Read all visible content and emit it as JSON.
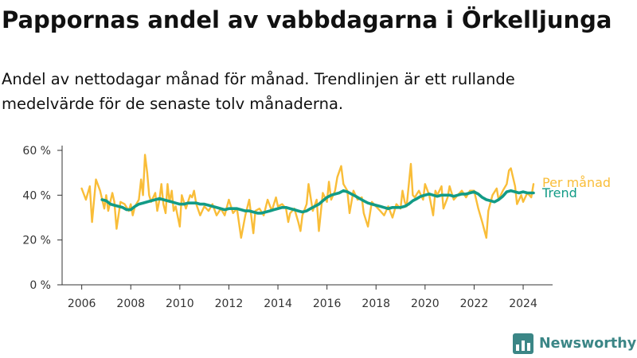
{
  "title": "Pappornas andel av vabbdagarna i Örkelljunga",
  "subtitle": "Andel av nettodagar månad för månad. Trendlinjen är ett rullande medelvärde för de senaste tolv månaderna.",
  "brand": {
    "name": "Newsworthy",
    "color": "#3b8686",
    "icon": "bar-chart-logo-icon"
  },
  "colors": {
    "monthly": "#f9bd38",
    "trend": "#129b86",
    "axis": "#333333"
  },
  "chart_data": {
    "type": "line",
    "title": "Pappornas andel av vabbdagarna i Örkelljunga",
    "xlabel": "",
    "ylabel": "",
    "xlim": [
      2005.2,
      2025.2
    ],
    "ylim": [
      0,
      60
    ],
    "y_ticks": [
      0,
      20,
      40,
      60
    ],
    "y_tick_labels": [
      "0 %",
      "20 %",
      "40 %",
      "60 %"
    ],
    "x_ticks": [
      2006,
      2008,
      2010,
      2012,
      2014,
      2016,
      2018,
      2020,
      2022,
      2024
    ],
    "x_tick_labels": [
      "2006",
      "2008",
      "2010",
      "2012",
      "2014",
      "2016",
      "2018",
      "2020",
      "2022",
      "2024"
    ],
    "grid": false,
    "legend": "inline labels at line ends (right)",
    "series": [
      {
        "name": "Per månad",
        "color": "#f9bd38",
        "points": [
          [
            2006.0,
            43
          ],
          [
            2006.17,
            38
          ],
          [
            2006.33,
            44
          ],
          [
            2006.42,
            28
          ],
          [
            2006.58,
            47
          ],
          [
            2006.75,
            42
          ],
          [
            2006.92,
            34
          ],
          [
            2007.0,
            40
          ],
          [
            2007.08,
            33
          ],
          [
            2007.25,
            41
          ],
          [
            2007.33,
            37
          ],
          [
            2007.42,
            25
          ],
          [
            2007.58,
            37
          ],
          [
            2007.75,
            36
          ],
          [
            2007.92,
            33
          ],
          [
            2008.0,
            36
          ],
          [
            2008.08,
            31
          ],
          [
            2008.17,
            35
          ],
          [
            2008.33,
            38
          ],
          [
            2008.42,
            47
          ],
          [
            2008.5,
            40
          ],
          [
            2008.58,
            58
          ],
          [
            2008.67,
            50
          ],
          [
            2008.75,
            40
          ],
          [
            2008.83,
            37
          ],
          [
            2009.0,
            41
          ],
          [
            2009.08,
            33
          ],
          [
            2009.17,
            38
          ],
          [
            2009.25,
            45
          ],
          [
            2009.33,
            36
          ],
          [
            2009.42,
            32
          ],
          [
            2009.5,
            45
          ],
          [
            2009.58,
            37
          ],
          [
            2009.67,
            42
          ],
          [
            2009.75,
            33
          ],
          [
            2009.83,
            35
          ],
          [
            2010.0,
            26
          ],
          [
            2010.08,
            40
          ],
          [
            2010.25,
            34
          ],
          [
            2010.42,
            40
          ],
          [
            2010.5,
            39
          ],
          [
            2010.58,
            42
          ],
          [
            2010.67,
            36
          ],
          [
            2010.83,
            31
          ],
          [
            2011.0,
            35
          ],
          [
            2011.17,
            33
          ],
          [
            2011.33,
            36
          ],
          [
            2011.5,
            31
          ],
          [
            2011.67,
            34
          ],
          [
            2011.83,
            31
          ],
          [
            2012.0,
            38
          ],
          [
            2012.17,
            32
          ],
          [
            2012.33,
            34
          ],
          [
            2012.5,
            21
          ],
          [
            2012.67,
            31
          ],
          [
            2012.83,
            38
          ],
          [
            2013.0,
            23
          ],
          [
            2013.08,
            33
          ],
          [
            2013.25,
            34
          ],
          [
            2013.42,
            31
          ],
          [
            2013.58,
            38
          ],
          [
            2013.75,
            33
          ],
          [
            2013.92,
            39
          ],
          [
            2014.0,
            35
          ],
          [
            2014.17,
            36
          ],
          [
            2014.33,
            34
          ],
          [
            2014.42,
            28
          ],
          [
            2014.5,
            32
          ],
          [
            2014.67,
            34
          ],
          [
            2014.83,
            28
          ],
          [
            2014.92,
            24
          ],
          [
            2015.0,
            31
          ],
          [
            2015.17,
            36
          ],
          [
            2015.25,
            45
          ],
          [
            2015.42,
            33
          ],
          [
            2015.58,
            38
          ],
          [
            2015.67,
            24
          ],
          [
            2015.83,
            41
          ],
          [
            2016.0,
            37
          ],
          [
            2016.08,
            46
          ],
          [
            2016.17,
            38
          ],
          [
            2016.33,
            42
          ],
          [
            2016.42,
            48
          ],
          [
            2016.58,
            53
          ],
          [
            2016.67,
            45
          ],
          [
            2016.83,
            42
          ],
          [
            2016.92,
            32
          ],
          [
            2017.08,
            42
          ],
          [
            2017.25,
            38
          ],
          [
            2017.42,
            39
          ],
          [
            2017.5,
            32
          ],
          [
            2017.67,
            26
          ],
          [
            2017.83,
            37
          ],
          [
            2018.0,
            35
          ],
          [
            2018.17,
            33
          ],
          [
            2018.33,
            31
          ],
          [
            2018.5,
            35
          ],
          [
            2018.67,
            30
          ],
          [
            2018.83,
            36
          ],
          [
            2019.0,
            34
          ],
          [
            2019.08,
            42
          ],
          [
            2019.17,
            37
          ],
          [
            2019.25,
            35
          ],
          [
            2019.42,
            54
          ],
          [
            2019.5,
            40
          ],
          [
            2019.58,
            39
          ],
          [
            2019.75,
            42
          ],
          [
            2019.92,
            38
          ],
          [
            2020.0,
            45
          ],
          [
            2020.17,
            40
          ],
          [
            2020.33,
            31
          ],
          [
            2020.42,
            42
          ],
          [
            2020.5,
            40
          ],
          [
            2020.67,
            44
          ],
          [
            2020.75,
            34
          ],
          [
            2020.92,
            39
          ],
          [
            2021.0,
            44
          ],
          [
            2021.17,
            38
          ],
          [
            2021.33,
            40
          ],
          [
            2021.5,
            42
          ],
          [
            2021.67,
            39
          ],
          [
            2021.83,
            42
          ],
          [
            2022.0,
            42
          ],
          [
            2022.17,
            34
          ],
          [
            2022.33,
            28
          ],
          [
            2022.5,
            21
          ],
          [
            2022.58,
            33
          ],
          [
            2022.75,
            40
          ],
          [
            2022.92,
            43
          ],
          [
            2023.0,
            38
          ],
          [
            2023.17,
            42
          ],
          [
            2023.33,
            45
          ],
          [
            2023.42,
            51
          ],
          [
            2023.5,
            52
          ],
          [
            2023.67,
            44
          ],
          [
            2023.75,
            36
          ],
          [
            2023.92,
            40
          ],
          [
            2024.0,
            37
          ],
          [
            2024.17,
            41
          ],
          [
            2024.33,
            39
          ],
          [
            2024.42,
            45
          ]
        ]
      },
      {
        "name": "Trend",
        "color": "#129b86",
        "points": [
          [
            2006.83,
            38
          ],
          [
            2007.0,
            37.5
          ],
          [
            2007.17,
            36
          ],
          [
            2007.33,
            35.5
          ],
          [
            2007.5,
            35
          ],
          [
            2007.67,
            34.5
          ],
          [
            2007.83,
            33.5
          ],
          [
            2008.0,
            33.5
          ],
          [
            2008.17,
            35
          ],
          [
            2008.33,
            36
          ],
          [
            2008.5,
            36.5
          ],
          [
            2008.67,
            37
          ],
          [
            2008.83,
            37.5
          ],
          [
            2009.0,
            38
          ],
          [
            2009.17,
            38.5
          ],
          [
            2009.33,
            38
          ],
          [
            2009.5,
            37.5
          ],
          [
            2009.67,
            37
          ],
          [
            2009.83,
            36.5
          ],
          [
            2010.0,
            36
          ],
          [
            2010.17,
            36
          ],
          [
            2010.33,
            36.5
          ],
          [
            2010.5,
            36.5
          ],
          [
            2010.67,
            36.5
          ],
          [
            2010.83,
            36
          ],
          [
            2011.0,
            36
          ],
          [
            2011.17,
            35.5
          ],
          [
            2011.33,
            35
          ],
          [
            2011.5,
            34.5
          ],
          [
            2011.67,
            34
          ],
          [
            2011.83,
            33.5
          ],
          [
            2012.0,
            34
          ],
          [
            2012.17,
            34
          ],
          [
            2012.33,
            34
          ],
          [
            2012.5,
            33.5
          ],
          [
            2012.67,
            33
          ],
          [
            2012.83,
            33
          ],
          [
            2013.0,
            32.5
          ],
          [
            2013.17,
            32
          ],
          [
            2013.33,
            32
          ],
          [
            2013.5,
            32.5
          ],
          [
            2013.67,
            33
          ],
          [
            2013.83,
            33.5
          ],
          [
            2014.0,
            34
          ],
          [
            2014.17,
            34.5
          ],
          [
            2014.33,
            34.5
          ],
          [
            2014.5,
            34
          ],
          [
            2014.67,
            33.5
          ],
          [
            2014.83,
            33
          ],
          [
            2015.0,
            32.5
          ],
          [
            2015.17,
            33
          ],
          [
            2015.33,
            34
          ],
          [
            2015.5,
            35
          ],
          [
            2015.67,
            36
          ],
          [
            2015.83,
            37.5
          ],
          [
            2016.0,
            39
          ],
          [
            2016.17,
            40
          ],
          [
            2016.33,
            40.5
          ],
          [
            2016.5,
            41
          ],
          [
            2016.67,
            42
          ],
          [
            2016.83,
            41.5
          ],
          [
            2017.0,
            40.5
          ],
          [
            2017.17,
            39.5
          ],
          [
            2017.33,
            38.5
          ],
          [
            2017.5,
            37.5
          ],
          [
            2017.67,
            36.5
          ],
          [
            2017.83,
            36
          ],
          [
            2018.0,
            35.5
          ],
          [
            2018.17,
            35
          ],
          [
            2018.33,
            34.5
          ],
          [
            2018.5,
            34
          ],
          [
            2018.67,
            34.5
          ],
          [
            2018.83,
            34.5
          ],
          [
            2019.0,
            34.5
          ],
          [
            2019.17,
            35
          ],
          [
            2019.33,
            36
          ],
          [
            2019.5,
            37.5
          ],
          [
            2019.67,
            38.5
          ],
          [
            2019.83,
            39.5
          ],
          [
            2020.0,
            40
          ],
          [
            2020.17,
            40.5
          ],
          [
            2020.33,
            40
          ],
          [
            2020.5,
            39.5
          ],
          [
            2020.67,
            40
          ],
          [
            2020.83,
            40
          ],
          [
            2021.0,
            40
          ],
          [
            2021.17,
            39.5
          ],
          [
            2021.33,
            40
          ],
          [
            2021.5,
            40.5
          ],
          [
            2021.67,
            40.5
          ],
          [
            2021.83,
            41
          ],
          [
            2022.0,
            41.5
          ],
          [
            2022.17,
            40.5
          ],
          [
            2022.33,
            39
          ],
          [
            2022.5,
            38
          ],
          [
            2022.67,
            37.5
          ],
          [
            2022.83,
            37
          ],
          [
            2023.0,
            38
          ],
          [
            2023.17,
            39.5
          ],
          [
            2023.33,
            41.5
          ],
          [
            2023.5,
            42
          ],
          [
            2023.67,
            41.5
          ],
          [
            2023.83,
            41
          ],
          [
            2024.0,
            41.5
          ],
          [
            2024.17,
            41
          ],
          [
            2024.42,
            41
          ]
        ]
      }
    ]
  }
}
